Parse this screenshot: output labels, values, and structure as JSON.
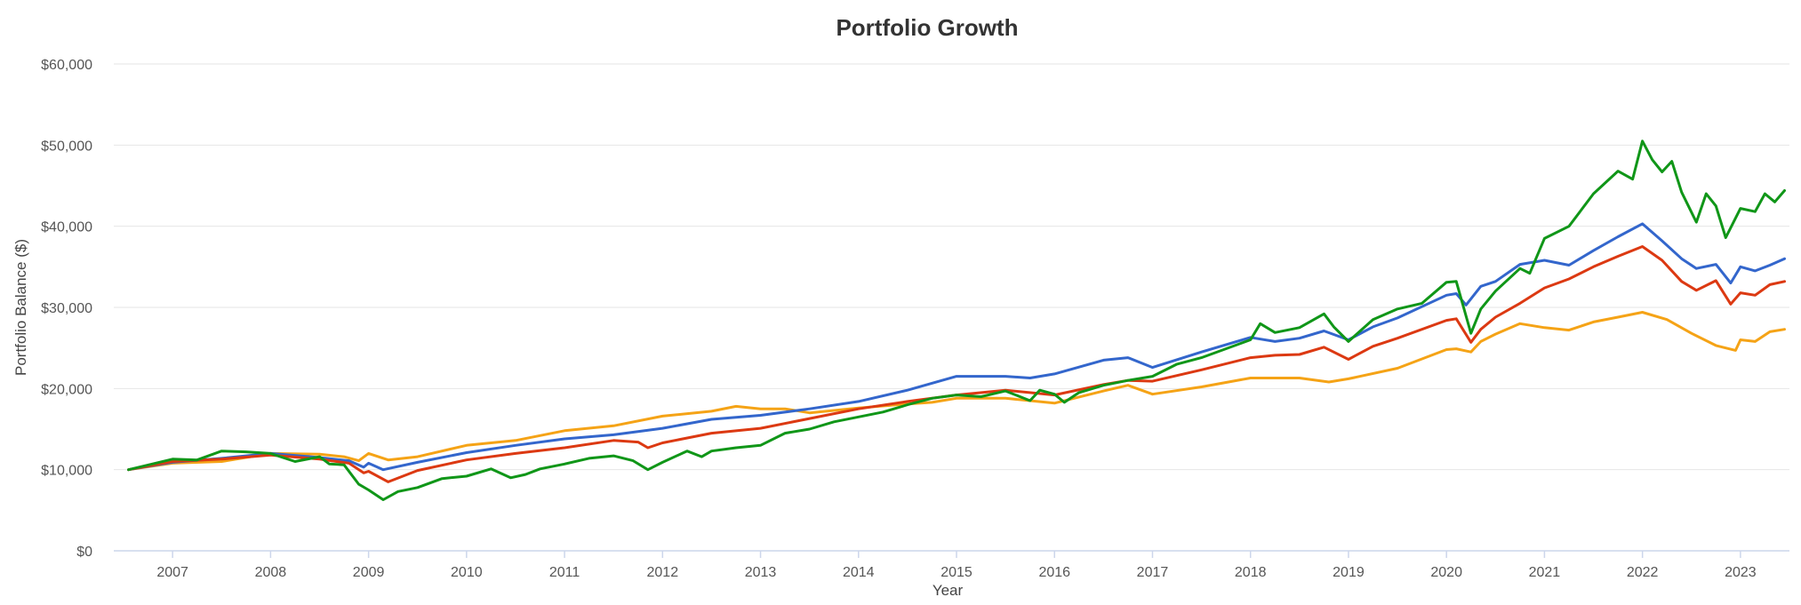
{
  "chart_data": {
    "type": "line",
    "title": "Portfolio Growth",
    "xlabel": "Year",
    "ylabel": "Portfolio Balance ($)",
    "ylim": [
      0,
      60000
    ],
    "yticks": [
      0,
      10000,
      20000,
      30000,
      40000,
      50000,
      60000
    ],
    "ytick_labels": [
      "$0",
      "$10,000",
      "$20,000",
      "$30,000",
      "$40,000",
      "$50,000",
      "$60,000"
    ],
    "xlim": [
      2006.4,
      2023.5
    ],
    "xticks": [
      2007,
      2008,
      2009,
      2010,
      2011,
      2012,
      2013,
      2014,
      2015,
      2016,
      2017,
      2018,
      2019,
      2020,
      2021,
      2022,
      2023
    ],
    "xtick_labels": [
      "2007",
      "2008",
      "2009",
      "2010",
      "2011",
      "2012",
      "2013",
      "2014",
      "2015",
      "2016",
      "2017",
      "2018",
      "2019",
      "2020",
      "2021",
      "2022",
      "2023"
    ],
    "grid": true,
    "legend": "none",
    "series": [
      {
        "color": "#f5a316",
        "points": [
          [
            2006.55,
            10000
          ],
          [
            2007.0,
            10800
          ],
          [
            2007.5,
            11000
          ],
          [
            2008.0,
            12000
          ],
          [
            2008.5,
            11900
          ],
          [
            2008.75,
            11600
          ],
          [
            2008.9,
            11100
          ],
          [
            2009.0,
            12000
          ],
          [
            2009.2,
            11200
          ],
          [
            2009.5,
            11600
          ],
          [
            2010.0,
            13000
          ],
          [
            2010.5,
            13600
          ],
          [
            2011.0,
            14800
          ],
          [
            2011.5,
            15400
          ],
          [
            2012.0,
            16600
          ],
          [
            2012.5,
            17200
          ],
          [
            2012.75,
            17800
          ],
          [
            2013.0,
            17500
          ],
          [
            2013.25,
            17500
          ],
          [
            2013.5,
            17000
          ],
          [
            2014.0,
            17600
          ],
          [
            2014.5,
            18100
          ],
          [
            2014.75,
            18300
          ],
          [
            2015.0,
            18800
          ],
          [
            2015.5,
            18800
          ],
          [
            2015.75,
            18500
          ],
          [
            2016.0,
            18200
          ],
          [
            2016.5,
            19700
          ],
          [
            2016.75,
            20400
          ],
          [
            2017.0,
            19300
          ],
          [
            2017.5,
            20200
          ],
          [
            2018.0,
            21300
          ],
          [
            2018.5,
            21300
          ],
          [
            2018.8,
            20800
          ],
          [
            2019.0,
            21200
          ],
          [
            2019.5,
            22500
          ],
          [
            2020.0,
            24800
          ],
          [
            2020.1,
            24900
          ],
          [
            2020.25,
            24500
          ],
          [
            2020.35,
            25800
          ],
          [
            2020.5,
            26700
          ],
          [
            2020.75,
            28000
          ],
          [
            2021.0,
            27500
          ],
          [
            2021.25,
            27200
          ],
          [
            2021.5,
            28200
          ],
          [
            2021.75,
            28800
          ],
          [
            2022.0,
            29400
          ],
          [
            2022.25,
            28500
          ],
          [
            2022.5,
            26800
          ],
          [
            2022.75,
            25300
          ],
          [
            2022.95,
            24700
          ],
          [
            2023.0,
            26000
          ],
          [
            2023.15,
            25800
          ],
          [
            2023.3,
            27000
          ],
          [
            2023.45,
            27300
          ]
        ]
      },
      {
        "color": "#3366cc",
        "points": [
          [
            2006.55,
            10000
          ],
          [
            2007.0,
            10900
          ],
          [
            2007.5,
            11400
          ],
          [
            2008.0,
            12000
          ],
          [
            2008.5,
            11500
          ],
          [
            2008.8,
            11100
          ],
          [
            2008.95,
            10300
          ],
          [
            2009.0,
            10800
          ],
          [
            2009.15,
            10000
          ],
          [
            2009.5,
            10900
          ],
          [
            2010.0,
            12100
          ],
          [
            2010.5,
            13000
          ],
          [
            2011.0,
            13800
          ],
          [
            2011.5,
            14300
          ],
          [
            2012.0,
            15100
          ],
          [
            2012.5,
            16200
          ],
          [
            2013.0,
            16700
          ],
          [
            2013.5,
            17500
          ],
          [
            2014.0,
            18400
          ],
          [
            2014.5,
            19800
          ],
          [
            2015.0,
            21500
          ],
          [
            2015.5,
            21500
          ],
          [
            2015.75,
            21300
          ],
          [
            2016.0,
            21800
          ],
          [
            2016.5,
            23500
          ],
          [
            2016.75,
            23800
          ],
          [
            2017.0,
            22600
          ],
          [
            2017.5,
            24500
          ],
          [
            2018.0,
            26300
          ],
          [
            2018.25,
            25800
          ],
          [
            2018.5,
            26200
          ],
          [
            2018.75,
            27100
          ],
          [
            2019.0,
            26000
          ],
          [
            2019.25,
            27600
          ],
          [
            2019.5,
            28700
          ],
          [
            2020.0,
            31500
          ],
          [
            2020.1,
            31700
          ],
          [
            2020.2,
            30300
          ],
          [
            2020.35,
            32600
          ],
          [
            2020.5,
            33200
          ],
          [
            2020.75,
            35300
          ],
          [
            2021.0,
            35800
          ],
          [
            2021.25,
            35200
          ],
          [
            2021.5,
            37000
          ],
          [
            2021.75,
            38700
          ],
          [
            2022.0,
            40300
          ],
          [
            2022.2,
            38200
          ],
          [
            2022.4,
            36000
          ],
          [
            2022.55,
            34800
          ],
          [
            2022.75,
            35300
          ],
          [
            2022.9,
            33000
          ],
          [
            2023.0,
            35000
          ],
          [
            2023.15,
            34500
          ],
          [
            2023.3,
            35200
          ],
          [
            2023.45,
            36000
          ]
        ]
      },
      {
        "color": "#dc3912",
        "points": [
          [
            2006.55,
            10000
          ],
          [
            2007.0,
            11000
          ],
          [
            2007.5,
            11300
          ],
          [
            2008.0,
            11800
          ],
          [
            2008.5,
            11300
          ],
          [
            2008.8,
            10800
          ],
          [
            2008.95,
            9600
          ],
          [
            2009.0,
            9800
          ],
          [
            2009.2,
            8500
          ],
          [
            2009.5,
            9900
          ],
          [
            2010.0,
            11200
          ],
          [
            2010.5,
            12000
          ],
          [
            2011.0,
            12700
          ],
          [
            2011.5,
            13600
          ],
          [
            2011.75,
            13400
          ],
          [
            2011.85,
            12700
          ],
          [
            2012.0,
            13300
          ],
          [
            2012.5,
            14500
          ],
          [
            2013.0,
            15100
          ],
          [
            2013.5,
            16300
          ],
          [
            2014.0,
            17500
          ],
          [
            2014.5,
            18400
          ],
          [
            2015.0,
            19200
          ],
          [
            2015.5,
            19800
          ],
          [
            2016.0,
            19200
          ],
          [
            2016.5,
            20500
          ],
          [
            2016.75,
            21000
          ],
          [
            2017.0,
            20900
          ],
          [
            2017.5,
            22300
          ],
          [
            2018.0,
            23800
          ],
          [
            2018.25,
            24100
          ],
          [
            2018.5,
            24200
          ],
          [
            2018.75,
            25100
          ],
          [
            2019.0,
            23600
          ],
          [
            2019.25,
            25200
          ],
          [
            2019.5,
            26200
          ],
          [
            2020.0,
            28400
          ],
          [
            2020.1,
            28600
          ],
          [
            2020.25,
            25700
          ],
          [
            2020.35,
            27300
          ],
          [
            2020.5,
            28800
          ],
          [
            2020.75,
            30500
          ],
          [
            2021.0,
            32400
          ],
          [
            2021.25,
            33500
          ],
          [
            2021.5,
            35000
          ],
          [
            2021.75,
            36300
          ],
          [
            2022.0,
            37500
          ],
          [
            2022.2,
            35800
          ],
          [
            2022.4,
            33200
          ],
          [
            2022.55,
            32100
          ],
          [
            2022.75,
            33300
          ],
          [
            2022.9,
            30400
          ],
          [
            2023.0,
            31800
          ],
          [
            2023.15,
            31500
          ],
          [
            2023.3,
            32800
          ],
          [
            2023.45,
            33200
          ]
        ]
      },
      {
        "color": "#109618",
        "points": [
          [
            2006.55,
            10000
          ],
          [
            2007.0,
            11300
          ],
          [
            2007.25,
            11200
          ],
          [
            2007.5,
            12300
          ],
          [
            2007.75,
            12200
          ],
          [
            2008.0,
            12000
          ],
          [
            2008.25,
            11000
          ],
          [
            2008.5,
            11600
          ],
          [
            2008.6,
            10700
          ],
          [
            2008.75,
            10600
          ],
          [
            2008.9,
            8200
          ],
          [
            2009.0,
            7500
          ],
          [
            2009.15,
            6300
          ],
          [
            2009.3,
            7300
          ],
          [
            2009.5,
            7800
          ],
          [
            2009.75,
            8900
          ],
          [
            2010.0,
            9200
          ],
          [
            2010.25,
            10100
          ],
          [
            2010.45,
            9000
          ],
          [
            2010.6,
            9400
          ],
          [
            2010.75,
            10100
          ],
          [
            2011.0,
            10700
          ],
          [
            2011.25,
            11400
          ],
          [
            2011.5,
            11700
          ],
          [
            2011.7,
            11100
          ],
          [
            2011.85,
            10000
          ],
          [
            2012.0,
            10900
          ],
          [
            2012.25,
            12300
          ],
          [
            2012.4,
            11600
          ],
          [
            2012.5,
            12300
          ],
          [
            2012.75,
            12700
          ],
          [
            2013.0,
            13000
          ],
          [
            2013.25,
            14500
          ],
          [
            2013.5,
            15000
          ],
          [
            2013.75,
            15900
          ],
          [
            2014.0,
            16500
          ],
          [
            2014.25,
            17100
          ],
          [
            2014.5,
            18000
          ],
          [
            2014.75,
            18800
          ],
          [
            2015.0,
            19200
          ],
          [
            2015.25,
            19000
          ],
          [
            2015.5,
            19700
          ],
          [
            2015.75,
            18500
          ],
          [
            2015.85,
            19800
          ],
          [
            2016.0,
            19300
          ],
          [
            2016.1,
            18300
          ],
          [
            2016.25,
            19500
          ],
          [
            2016.5,
            20400
          ],
          [
            2016.75,
            21000
          ],
          [
            2017.0,
            21500
          ],
          [
            2017.25,
            23000
          ],
          [
            2017.5,
            23800
          ],
          [
            2018.0,
            26000
          ],
          [
            2018.1,
            28000
          ],
          [
            2018.25,
            26900
          ],
          [
            2018.5,
            27500
          ],
          [
            2018.75,
            29200
          ],
          [
            2018.85,
            27600
          ],
          [
            2019.0,
            25800
          ],
          [
            2019.25,
            28500
          ],
          [
            2019.5,
            29800
          ],
          [
            2019.75,
            30500
          ],
          [
            2020.0,
            33100
          ],
          [
            2020.1,
            33200
          ],
          [
            2020.25,
            26800
          ],
          [
            2020.35,
            29800
          ],
          [
            2020.5,
            32000
          ],
          [
            2020.75,
            34800
          ],
          [
            2020.85,
            34200
          ],
          [
            2021.0,
            38500
          ],
          [
            2021.25,
            40000
          ],
          [
            2021.5,
            44000
          ],
          [
            2021.75,
            46800
          ],
          [
            2021.9,
            45800
          ],
          [
            2022.0,
            50500
          ],
          [
            2022.1,
            48200
          ],
          [
            2022.2,
            46700
          ],
          [
            2022.3,
            48000
          ],
          [
            2022.4,
            44200
          ],
          [
            2022.55,
            40500
          ],
          [
            2022.65,
            44000
          ],
          [
            2022.75,
            42500
          ],
          [
            2022.85,
            38600
          ],
          [
            2023.0,
            42200
          ],
          [
            2023.15,
            41800
          ],
          [
            2023.25,
            44000
          ],
          [
            2023.35,
            43000
          ],
          [
            2023.45,
            44400
          ]
        ]
      }
    ]
  }
}
